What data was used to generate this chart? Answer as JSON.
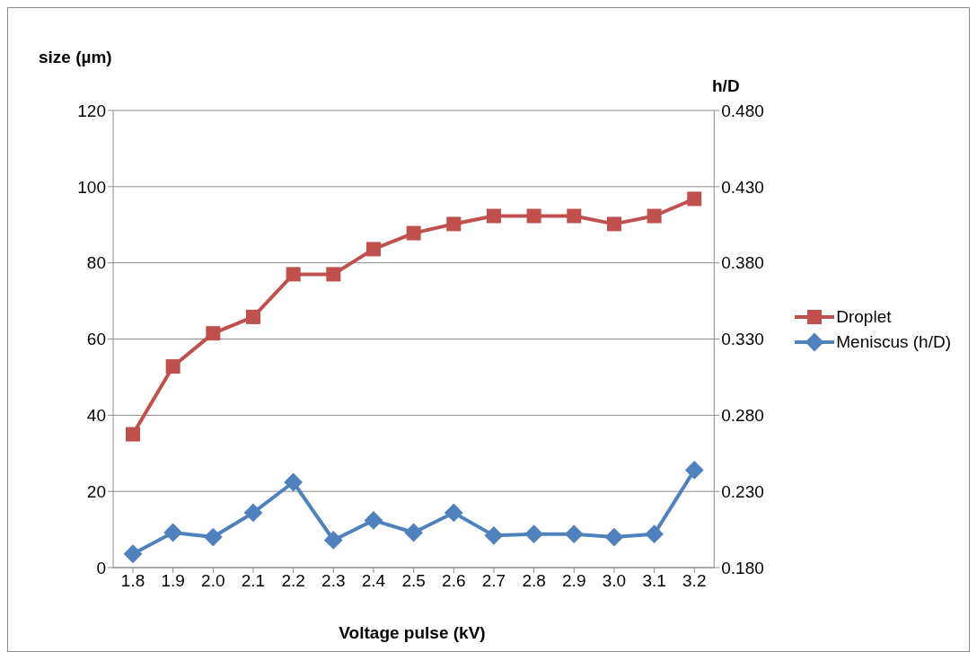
{
  "chart_data": {
    "type": "line",
    "xlabel": "Voltage pulse (kV)",
    "ylabel": "size (µm)",
    "y2label": "h/D",
    "categories": [
      "1.8",
      "1.9",
      "2.0",
      "2.1",
      "2.2",
      "2.3",
      "2.4",
      "2.5",
      "2.6",
      "2.7",
      "2.8",
      "2.9",
      "3.0",
      "3.1",
      "3.2"
    ],
    "series": [
      {
        "name": "Droplet",
        "color": "#c0504d",
        "marker": "square",
        "values": [
          35.0,
          52.8,
          61.5,
          65.8,
          77.0,
          77.0,
          83.6,
          87.8,
          90.2,
          92.3,
          92.3,
          92.3,
          90.2,
          92.3,
          96.8
        ]
      },
      {
        "name": "Meniscus (h/D)",
        "color": "#4f81bd",
        "marker": "diamond",
        "axis": "y2",
        "values": [
          0.189,
          0.203,
          0.2,
          0.216,
          0.236,
          0.198,
          0.211,
          0.203,
          0.216,
          0.201,
          0.202,
          0.202,
          0.2,
          0.202,
          0.244
        ]
      }
    ],
    "ylim": [
      0,
      120
    ],
    "yticks": [
      0,
      20,
      40,
      60,
      80,
      100,
      120
    ],
    "y2lim": [
      0.18,
      0.48
    ],
    "y2ticks": [
      {
        "value": 0.18,
        "label": "0.180"
      },
      {
        "value": 0.23,
        "label": "0.230"
      },
      {
        "value": 0.28,
        "label": "0.280"
      },
      {
        "value": 0.33,
        "label": "0.330"
      },
      {
        "value": 0.38,
        "label": "0.380"
      },
      {
        "value": 0.43,
        "label": "0.430"
      },
      {
        "value": 0.48,
        "label": "0.480"
      }
    ],
    "grid": "y",
    "legend": "right",
    "line_style": "solid"
  }
}
